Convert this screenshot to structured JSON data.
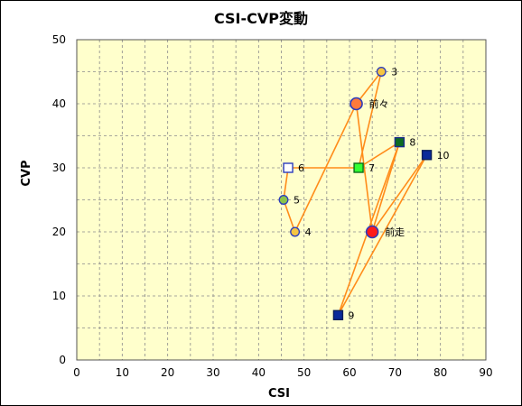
{
  "chart_data": {
    "type": "scatter",
    "title": "CSI-CVP変動",
    "xlabel": "CSI",
    "ylabel": "CVP",
    "xlim": [
      0,
      90
    ],
    "ylim": [
      0,
      50
    ],
    "xticks": [
      0,
      10,
      20,
      30,
      40,
      50,
      60,
      70,
      80,
      90
    ],
    "yticks": [
      0,
      10,
      20,
      30,
      40,
      50
    ],
    "grid": "dashed, minor every 5",
    "plot_background": "#ffffcc",
    "line_color": "#ff8c1a",
    "points": [
      {
        "label": "3",
        "x": 67,
        "y": 45,
        "marker": "circle",
        "fill": "#f5c542",
        "stroke": "#2a3bbd"
      },
      {
        "label": "前々",
        "x": 61.5,
        "y": 40,
        "marker": "circle-large",
        "fill": "#ff7a3a",
        "stroke": "#2a3bbd"
      },
      {
        "label": "8",
        "x": 71,
        "y": 34,
        "marker": "square",
        "fill": "#0d6b20",
        "stroke": "#1a2b8c"
      },
      {
        "label": "10",
        "x": 77,
        "y": 32,
        "marker": "square",
        "fill": "#0b2a9a",
        "stroke": "#0b1e5a"
      },
      {
        "label": "6",
        "x": 46.5,
        "y": 30,
        "marker": "square",
        "fill": "#ffffff",
        "stroke": "#2a3bbd"
      },
      {
        "label": "7",
        "x": 62,
        "y": 30,
        "marker": "square",
        "fill": "#33ff33",
        "stroke": "#0b6b1a"
      },
      {
        "label": "5",
        "x": 45.5,
        "y": 25,
        "marker": "circle",
        "fill": "#8bc34a",
        "stroke": "#2a3bbd"
      },
      {
        "label": "4",
        "x": 48,
        "y": 20,
        "marker": "circle",
        "fill": "#f5c542",
        "stroke": "#2a3bbd"
      },
      {
        "label": "前走",
        "x": 65,
        "y": 20,
        "marker": "circle-large",
        "fill": "#ff1a1a",
        "stroke": "#2a3bbd"
      },
      {
        "label": "9",
        "x": 57.5,
        "y": 7,
        "marker": "square",
        "fill": "#0b2a9a",
        "stroke": "#0b1e5a"
      }
    ],
    "connections": [
      [
        "3",
        "前々"
      ],
      [
        "前々",
        "4"
      ],
      [
        "4",
        "5"
      ],
      [
        "5",
        "6"
      ],
      [
        "6",
        "7"
      ],
      [
        "7",
        "8"
      ],
      [
        "8",
        "9"
      ],
      [
        "9",
        "10"
      ],
      [
        "10",
        "前走"
      ],
      [
        "前走",
        "前々"
      ],
      [
        "前走",
        "8"
      ],
      [
        "3",
        "7"
      ]
    ]
  }
}
